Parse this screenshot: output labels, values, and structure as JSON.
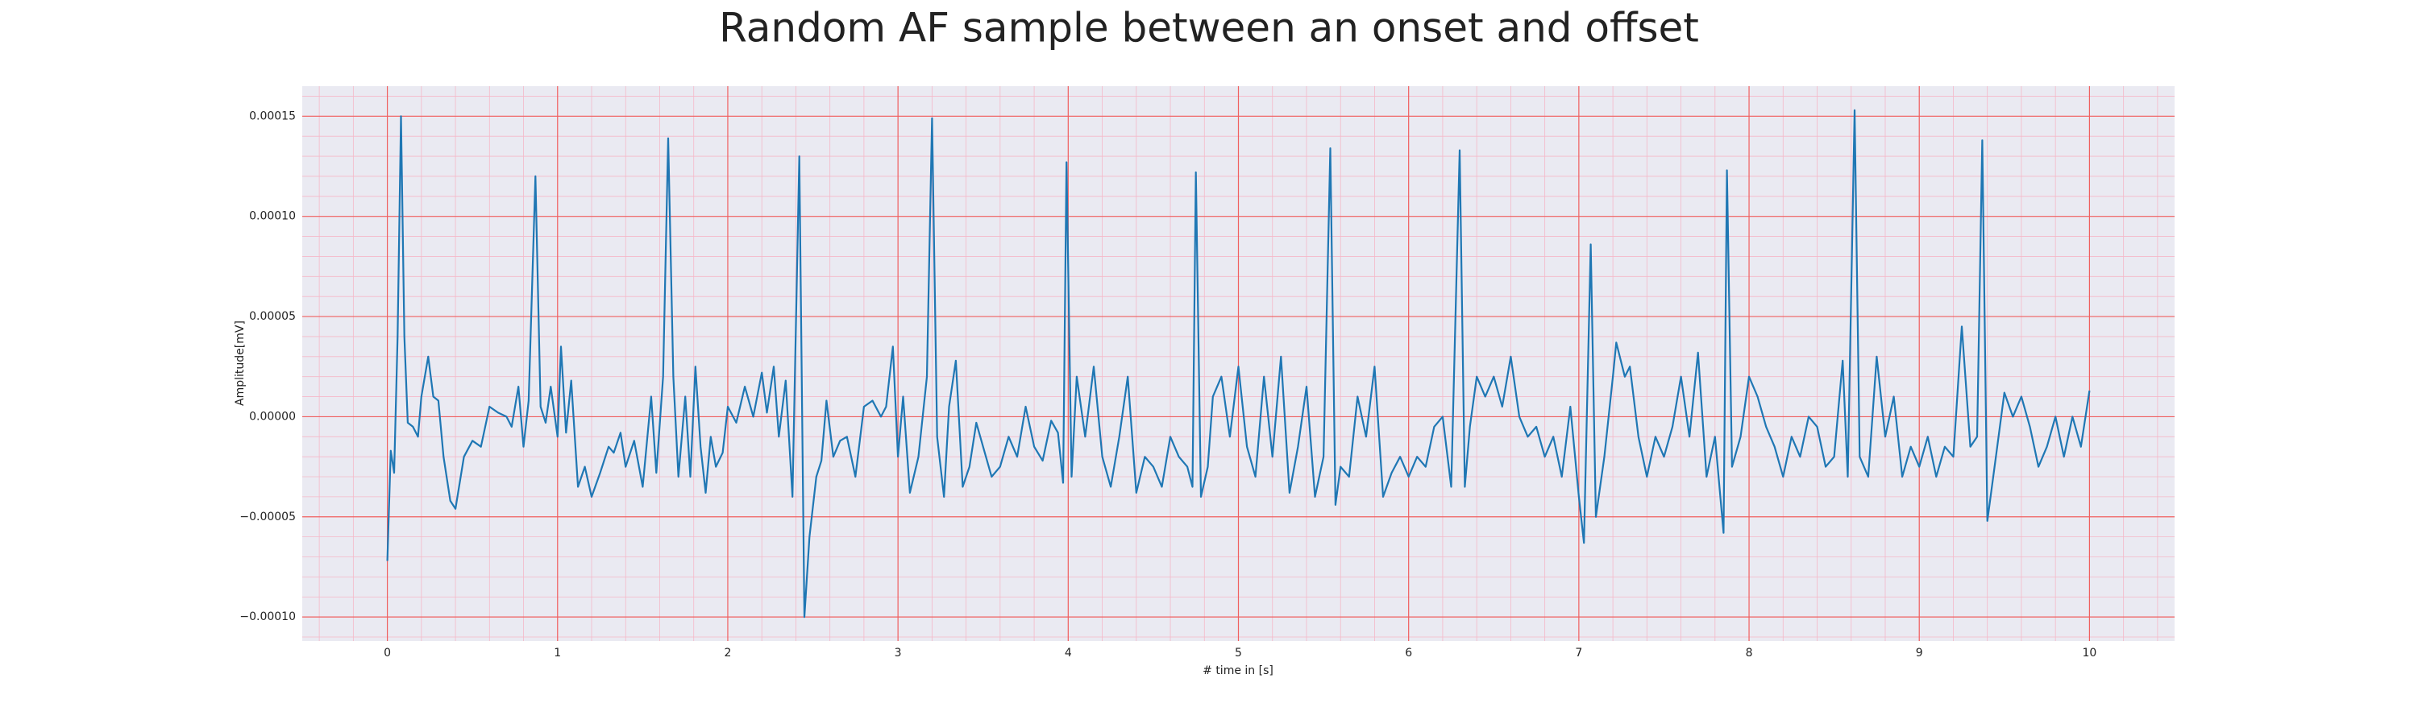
{
  "chart_data": {
    "type": "line",
    "title": "Random AF sample between an onset and offset",
    "xlabel": "# time in [s]",
    "ylabel": "Amplitude[mV]",
    "x": [
      0,
      0.02,
      0.04,
      0.06,
      0.08,
      0.1,
      0.12,
      0.15,
      0.18,
      0.2,
      0.24,
      0.27,
      0.3,
      0.33,
      0.37,
      0.4,
      0.45,
      0.5,
      0.55,
      0.6,
      0.65,
      0.7,
      0.73,
      0.77,
      0.8,
      0.83,
      0.87,
      0.9,
      0.93,
      0.96,
      1.0,
      1.02,
      1.05,
      1.08,
      1.12,
      1.16,
      1.2,
      1.25,
      1.3,
      1.33,
      1.37,
      1.4,
      1.45,
      1.5,
      1.55,
      1.58,
      1.62,
      1.65,
      1.68,
      1.71,
      1.75,
      1.78,
      1.81,
      1.84,
      1.87,
      1.9,
      1.93,
      1.97,
      2.0,
      2.05,
      2.1,
      2.15,
      2.2,
      2.23,
      2.27,
      2.3,
      2.34,
      2.38,
      2.42,
      2.45,
      2.48,
      2.52,
      2.55,
      2.58,
      2.62,
      2.66,
      2.7,
      2.75,
      2.8,
      2.85,
      2.9,
      2.93,
      2.97,
      3.0,
      3.03,
      3.07,
      3.12,
      3.17,
      3.2,
      3.23,
      3.27,
      3.3,
      3.34,
      3.38,
      3.42,
      3.46,
      3.5,
      3.55,
      3.6,
      3.65,
      3.7,
      3.75,
      3.8,
      3.85,
      3.9,
      3.94,
      3.97,
      3.99,
      4.02,
      4.05,
      4.1,
      4.15,
      4.2,
      4.25,
      4.3,
      4.35,
      4.4,
      4.45,
      4.5,
      4.55,
      4.6,
      4.65,
      4.7,
      4.73,
      4.75,
      4.78,
      4.82,
      4.85,
      4.9,
      4.95,
      5.0,
      5.05,
      5.1,
      5.15,
      5.2,
      5.25,
      5.3,
      5.35,
      5.4,
      5.45,
      5.5,
      5.54,
      5.57,
      5.6,
      5.65,
      5.7,
      5.75,
      5.8,
      5.85,
      5.9,
      5.95,
      6.0,
      6.05,
      6.1,
      6.15,
      6.2,
      6.25,
      6.3,
      6.33,
      6.36,
      6.4,
      6.45,
      6.5,
      6.55,
      6.6,
      6.65,
      6.7,
      6.75,
      6.8,
      6.85,
      6.9,
      6.95,
      7.0,
      7.03,
      7.07,
      7.1,
      7.15,
      7.2,
      7.22,
      7.27,
      7.3,
      7.35,
      7.4,
      7.45,
      7.5,
      7.55,
      7.6,
      7.65,
      7.7,
      7.75,
      7.8,
      7.85,
      7.87,
      7.9,
      7.95,
      8.0,
      8.05,
      8.1,
      8.15,
      8.2,
      8.25,
      8.3,
      8.35,
      8.4,
      8.45,
      8.5,
      8.55,
      8.58,
      8.62,
      8.65,
      8.7,
      8.75,
      8.8,
      8.85,
      8.9,
      8.95,
      9.0,
      9.05,
      9.1,
      9.15,
      9.2,
      9.25,
      9.3,
      9.34,
      9.37,
      9.4,
      9.45,
      9.5,
      9.55,
      9.6,
      9.65,
      9.7,
      9.75,
      9.8,
      9.85,
      9.9,
      9.95,
      10.0
    ],
    "series": [
      {
        "color": "#1f77b4",
        "values": [
          -7.2e-05,
          -1.7e-05,
          -2.8e-05,
          4e-05,
          0.00015,
          4e-05,
          -3e-06,
          -5e-06,
          -1e-05,
          1e-05,
          3e-05,
          1e-05,
          8e-06,
          -2e-05,
          -4.2e-05,
          -4.6e-05,
          -2e-05,
          -1.2e-05,
          -1.5e-05,
          5e-06,
          2e-06,
          0,
          -5e-06,
          1.5e-05,
          -1.5e-05,
          8e-06,
          0.00012,
          5e-06,
          -3e-06,
          1.5e-05,
          -1e-05,
          3.5e-05,
          -8e-06,
          1.8e-05,
          -3.5e-05,
          -2.5e-05,
          -4e-05,
          -2.8e-05,
          -1.5e-05,
          -1.8e-05,
          -8e-06,
          -2.5e-05,
          -1.2e-05,
          -3.5e-05,
          1e-05,
          -2.8e-05,
          2e-05,
          0.000139,
          2e-05,
          -3e-05,
          1e-05,
          -3e-05,
          2.5e-05,
          -1.5e-05,
          -3.8e-05,
          -1e-05,
          -2.5e-05,
          -1.8e-05,
          5e-06,
          -3e-06,
          1.5e-05,
          0,
          2.2e-05,
          2e-06,
          2.5e-05,
          -1e-05,
          1.8e-05,
          -4e-05,
          0.00013,
          -0.0001,
          -6e-05,
          -3e-05,
          -2.2e-05,
          8e-06,
          -2e-05,
          -1.2e-05,
          -1e-05,
          -3e-05,
          5e-06,
          8e-06,
          0,
          5e-06,
          3.5e-05,
          -2e-05,
          1e-05,
          -3.8e-05,
          -2e-05,
          2e-05,
          0.000149,
          -1e-05,
          -4e-05,
          5e-06,
          2.8e-05,
          -3.5e-05,
          -2.5e-05,
          -3e-06,
          -1.5e-05,
          -3e-05,
          -2.5e-05,
          -1e-05,
          -2e-05,
          5e-06,
          -1.5e-05,
          -2.2e-05,
          -2e-06,
          -8e-06,
          -3.3e-05,
          0.000127,
          -3e-05,
          2e-05,
          -1e-05,
          2.5e-05,
          -2e-05,
          -3.5e-05,
          -1e-05,
          2e-05,
          -3.8e-05,
          -2e-05,
          -2.5e-05,
          -3.5e-05,
          -1e-05,
          -2e-05,
          -2.5e-05,
          -3.5e-05,
          0.000122,
          -4e-05,
          -2.5e-05,
          1e-05,
          2e-05,
          -1e-05,
          2.5e-05,
          -1.5e-05,
          -3e-05,
          2e-05,
          -2e-05,
          3e-05,
          -3.8e-05,
          -1.5e-05,
          1.5e-05,
          -4e-05,
          -2e-05,
          0.000134,
          -4.4e-05,
          -2.5e-05,
          -3e-05,
          1e-05,
          -1e-05,
          2.5e-05,
          -4e-05,
          -2.8e-05,
          -2e-05,
          -3e-05,
          -2e-05,
          -2.5e-05,
          -5e-06,
          0,
          -3.5e-05,
          0.000133,
          -3.5e-05,
          -5e-06,
          2e-05,
          1e-05,
          2e-05,
          5e-06,
          3e-05,
          0,
          -1e-05,
          -5e-06,
          -2e-05,
          -1e-05,
          -3e-05,
          5e-06,
          -4e-05,
          -6.3e-05,
          8.6e-05,
          -5e-05,
          -2e-05,
          2e-05,
          3.7e-05,
          2e-05,
          2.5e-05,
          -1e-05,
          -3e-05,
          -1e-05,
          -2e-05,
          -5e-06,
          2e-05,
          -1e-05,
          3.2e-05,
          -3e-05,
          -1e-05,
          -5.8e-05,
          0.000123,
          -2.5e-05,
          -1e-05,
          2e-05,
          1e-05,
          -5e-06,
          -1.5e-05,
          -3e-05,
          -1e-05,
          -2e-05,
          0,
          -5e-06,
          -2.5e-05,
          -2e-05,
          2.8e-05,
          -3e-05,
          0.000153,
          -2e-05,
          -3e-05,
          3e-05,
          -1e-05,
          1e-05,
          -3e-05,
          -1.5e-05,
          -2.5e-05,
          -1e-05,
          -3e-05,
          -1.5e-05,
          -2e-05,
          4.5e-05,
          -1.5e-05,
          -1e-05,
          0.000138,
          -5.2e-05,
          -2e-05,
          1.2e-05,
          0,
          1e-05,
          -5e-06,
          -2.5e-05,
          -1.5e-05,
          0,
          -2e-05,
          0,
          -1.5e-05,
          1.3e-05
        ]
      }
    ],
    "xlim": [
      -0.5,
      10.5
    ],
    "ylim": [
      -0.000112,
      0.000165
    ],
    "xticks": [
      0,
      1,
      2,
      3,
      4,
      5,
      6,
      7,
      8,
      9,
      10
    ],
    "yticks": [
      {
        "value": -0.0001,
        "label": "−0.00010"
      },
      {
        "value": -5e-05,
        "label": "−0.00005"
      },
      {
        "value": 0,
        "label": "0.00000"
      },
      {
        "value": 5e-05,
        "label": "0.00005"
      },
      {
        "value": 0.0001,
        "label": "0.00010"
      },
      {
        "value": 0.00015,
        "label": "0.00015"
      }
    ],
    "grid": true,
    "minor_grid": true
  }
}
